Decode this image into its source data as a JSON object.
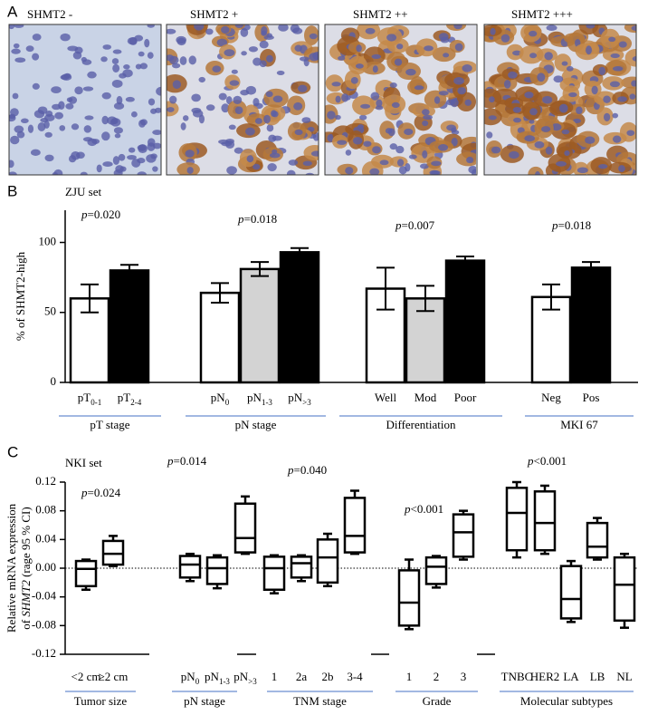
{
  "chart_data": [
    {
      "type": "image",
      "panel_label": "A",
      "labels": [
        "SHMT2 -",
        "SHMT2 +",
        "SHMT2 ++",
        "SHMT2 +++"
      ]
    },
    {
      "type": "bar",
      "panel_label": "B",
      "subtitle": "ZJU set",
      "ylabel": "% of SHMT2-high",
      "ylim": [
        0,
        123
      ],
      "yticks": [
        0,
        50,
        100
      ],
      "groups": [
        {
          "label": "pT stage",
          "annotation": [
            "p",
            "=0.020"
          ],
          "categories": [
            [
              "pT",
              "0-1"
            ],
            [
              "pT",
              "2-4"
            ]
          ],
          "values": [
            60,
            80
          ],
          "errors": [
            10,
            4
          ],
          "colors": [
            "#ffffff",
            "#000000"
          ]
        },
        {
          "label": "pN stage",
          "annotation": [
            "p",
            "=0.018"
          ],
          "categories": [
            [
              "pN",
              "0"
            ],
            [
              "pN",
              "1-3"
            ],
            [
              "pN",
              ">3"
            ]
          ],
          "values": [
            64,
            81,
            93
          ],
          "errors": [
            7,
            5,
            3
          ],
          "colors": [
            "#ffffff",
            "#d3d3d3",
            "#000000"
          ]
        },
        {
          "label": "Differentiation",
          "annotation": [
            "p",
            "=0.007"
          ],
          "categories": [
            [
              "Well"
            ],
            [
              "Mod"
            ],
            [
              "Poor"
            ]
          ],
          "values": [
            67,
            60,
            87
          ],
          "errors": [
            15,
            9,
            3
          ],
          "colors": [
            "#ffffff",
            "#d3d3d3",
            "#000000"
          ]
        },
        {
          "label": "MKI 67",
          "annotation": [
            "p",
            "=0.018"
          ],
          "categories": [
            [
              "Neg"
            ],
            [
              "Pos"
            ]
          ],
          "values": [
            61,
            82
          ],
          "errors": [
            9,
            4
          ],
          "colors": [
            "#ffffff",
            "#000000"
          ]
        }
      ]
    },
    {
      "type": "box",
      "panel_label": "C",
      "subtitle": "NKI set",
      "ylabel": [
        "Relative mRNA expression",
        [
          "of ",
          "SHMT2",
          " (rage 95 % CI)"
        ]
      ],
      "ylim": [
        -0.12,
        0.12
      ],
      "yticks": [
        -0.12,
        -0.08,
        -0.04,
        {
          "value": 0,
          "label": "0.00"
        },
        0.04,
        0.08,
        0.12
      ],
      "hline": 0,
      "groups": [
        {
          "label": "Tumor size",
          "annotation": [
            "p",
            "=0.024"
          ],
          "categories": [
            [
              "<2 cm"
            ],
            [
              "≥2 cm"
            ]
          ],
          "boxes": [
            [
              -0.03,
              -0.025,
              -0.001,
              0.01,
              0.012
            ],
            [
              0.003,
              0.005,
              0.02,
              0.038,
              0.045
            ]
          ]
        },
        {
          "label": "pN stage",
          "annotation": [
            "p",
            "=0.014"
          ],
          "categories": [
            [
              "pN",
              "0"
            ],
            [
              "pN",
              "1-3"
            ],
            [
              "pN",
              ">3"
            ]
          ],
          "boxes": [
            [
              -0.018,
              -0.013,
              0.005,
              0.017,
              0.02
            ],
            [
              -0.028,
              -0.022,
              0.0,
              0.015,
              0.018
            ],
            [
              0.02,
              0.022,
              0.042,
              0.09,
              0.1
            ]
          ]
        },
        {
          "label": "TNM stage",
          "annotation": [
            "p",
            "=0.040"
          ],
          "categories": [
            [
              "1"
            ],
            [
              "2a"
            ],
            [
              "2b"
            ],
            [
              "3-4"
            ]
          ],
          "boxes": [
            [
              -0.035,
              -0.03,
              0.0,
              0.016,
              0.018
            ],
            [
              -0.018,
              -0.013,
              0.007,
              0.016,
              0.018
            ],
            [
              -0.025,
              -0.02,
              0.015,
              0.04,
              0.048
            ],
            [
              0.02,
              0.022,
              0.045,
              0.098,
              0.108
            ]
          ]
        },
        {
          "label": "Grade",
          "annotation": [
            "p",
            "<0.001"
          ],
          "categories": [
            [
              "1"
            ],
            [
              "2"
            ],
            [
              "3"
            ]
          ],
          "boxes": [
            [
              -0.085,
              -0.08,
              -0.048,
              -0.003,
              0.012
            ],
            [
              -0.027,
              -0.022,
              0.002,
              0.015,
              0.017
            ],
            [
              0.012,
              0.016,
              0.05,
              0.075,
              0.08
            ]
          ]
        },
        {
          "label": "Molecular subtypes",
          "annotation": [
            "p",
            "<0.001"
          ],
          "categories": [
            [
              "TNBC"
            ],
            [
              "HER2"
            ],
            [
              "LA"
            ],
            [
              "LB"
            ],
            [
              "NL"
            ]
          ],
          "boxes": [
            [
              0.015,
              0.025,
              0.077,
              0.112,
              0.12
            ],
            [
              0.02,
              0.025,
              0.063,
              0.107,
              0.115
            ],
            [
              -0.075,
              -0.07,
              -0.043,
              0.003,
              0.01
            ],
            [
              0.012,
              0.015,
              0.03,
              0.063,
              0.07
            ],
            [
              -0.083,
              -0.073,
              -0.023,
              0.015,
              0.02
            ]
          ]
        }
      ]
    }
  ]
}
